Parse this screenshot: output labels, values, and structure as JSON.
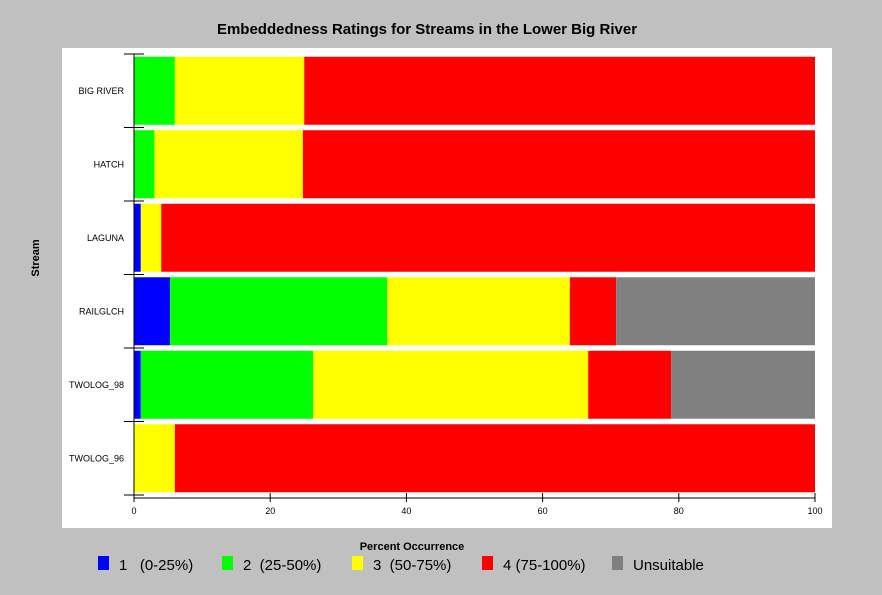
{
  "chart_data": {
    "type": "bar",
    "orientation": "horizontal",
    "stacked": true,
    "title": "Embeddedness Ratings for Streams in the Lower Big River",
    "xlabel": "Percent Occurrence",
    "ylabel": "Stream",
    "xlim": [
      0,
      100
    ],
    "xticks": [
      0,
      20,
      40,
      60,
      80,
      100
    ],
    "grid": false,
    "legend_position": "bottom",
    "categories": [
      "BIG RIVER",
      "HATCH",
      "LAGUNA",
      "RAILGLCH",
      "TWOLOG_98",
      "TWOLOG_96"
    ],
    "series": [
      {
        "name": "1   (0-25%)",
        "color": "#0000ff",
        "values": [
          0,
          0,
          1,
          5.3,
          1,
          0
        ]
      },
      {
        "name": "2  (25-50%)",
        "color": "#00ff00",
        "values": [
          6,
          3,
          0,
          31.9,
          25.3,
          0
        ]
      },
      {
        "name": "3  (50-75%)",
        "color": "#ffff00",
        "values": [
          19,
          21.8,
          3,
          26.8,
          40.4,
          6
        ]
      },
      {
        "name": "4 (75-100%)",
        "color": "#ff0000",
        "values": [
          75,
          75.2,
          96,
          6.8,
          12.2,
          94
        ]
      },
      {
        "name": "Unsuitable",
        "color": "#808080",
        "values": [
          0,
          0,
          0,
          29.2,
          21.1,
          0
        ]
      }
    ]
  }
}
